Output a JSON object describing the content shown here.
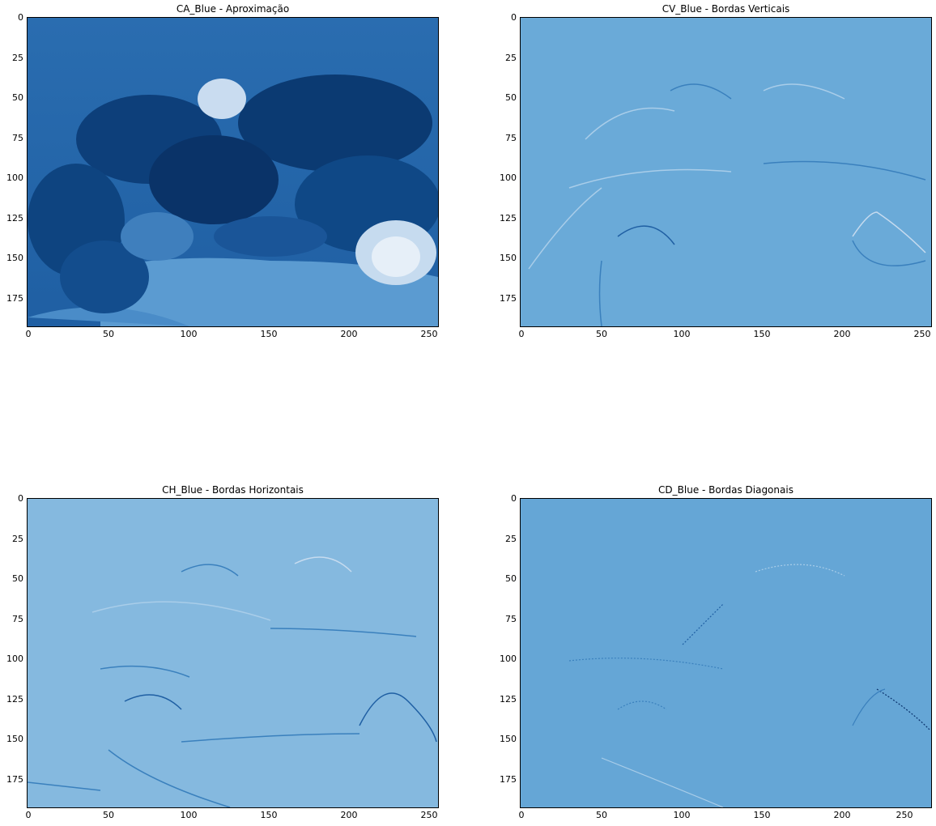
{
  "figure": {
    "colormap": "Blues",
    "panels": [
      {
        "id": "ca",
        "title": "CA_Blue - Aproximação",
        "base_color": "#1f5fa3"
      },
      {
        "id": "cv",
        "title": "CV_Blue - Bordas Verticais",
        "base_color": "#6aaad8"
      },
      {
        "id": "ch",
        "title": "CH_Blue - Bordas Horizontais",
        "base_color": "#85b9df"
      },
      {
        "id": "cd",
        "title": "CD_Blue - Bordas Diagonais",
        "base_color": "#65a6d6"
      }
    ],
    "y_ticks": [
      "0",
      "25",
      "50",
      "75",
      "100",
      "125",
      "150",
      "175"
    ],
    "x_ticks": [
      "0",
      "50",
      "100",
      "150",
      "200",
      "250"
    ],
    "image_extent": {
      "width": 256,
      "height": 192
    }
  }
}
